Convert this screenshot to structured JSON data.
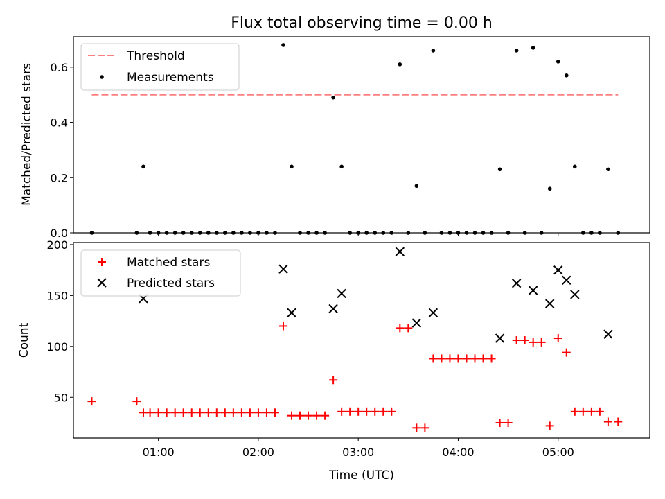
{
  "chart_data": [
    {
      "type": "scatter",
      "title": "Flux total observing time = 0.00 h",
      "xlabel": "",
      "ylabel": "Matched/Predicted stars",
      "ylim": [
        0,
        0.71
      ],
      "yticks": [
        "0.0",
        "0.2",
        "0.4",
        "0.6"
      ],
      "legend": {
        "placement": "top-left",
        "entries": [
          "Threshold",
          "Measurements"
        ]
      },
      "threshold": {
        "name": "Threshold",
        "value": 0.5,
        "x_start": "00:20",
        "x_end": "05:36",
        "color": "#ff7f7f",
        "style": "dashed"
      },
      "series": [
        {
          "name": "Measurements",
          "color": "#000000",
          "marker": "dot",
          "x": [
            "00:20",
            "00:47",
            "00:51",
            "00:55",
            "01:00",
            "01:05",
            "01:10",
            "01:15",
            "01:20",
            "01:25",
            "01:30",
            "01:35",
            "01:40",
            "01:45",
            "01:50",
            "01:55",
            "02:00",
            "02:05",
            "02:10",
            "02:15",
            "02:20",
            "02:25",
            "02:30",
            "02:35",
            "02:40",
            "02:45",
            "02:50",
            "02:55",
            "03:00",
            "03:05",
            "03:10",
            "03:15",
            "03:20",
            "03:25",
            "03:30",
            "03:35",
            "03:40",
            "03:45",
            "03:50",
            "03:55",
            "04:00",
            "04:05",
            "04:10",
            "04:15",
            "04:20",
            "04:25",
            "04:30",
            "04:35",
            "04:40",
            "04:45",
            "04:50",
            "04:55",
            "05:00",
            "05:05",
            "05:10",
            "05:15",
            "05:20",
            "05:25",
            "05:30",
            "05:36"
          ],
          "y": [
            0.0,
            0.0,
            0.24,
            0.0,
            0.0,
            0.0,
            0.0,
            0.0,
            0.0,
            0.0,
            0.0,
            0.0,
            0.0,
            0.0,
            0.0,
            0.0,
            0.0,
            0.0,
            0.0,
            0.68,
            0.24,
            0.0,
            0.0,
            0.0,
            0.0,
            0.49,
            0.24,
            0.0,
            0.0,
            0.0,
            0.0,
            0.0,
            0.0,
            0.61,
            0.0,
            0.17,
            0.0,
            0.66,
            0.0,
            0.0,
            0.0,
            0.0,
            0.0,
            0.0,
            0.0,
            0.23,
            0.0,
            0.66,
            0.0,
            0.67,
            0.0,
            0.16,
            0.62,
            0.57,
            0.24,
            0.0,
            0.0,
            0.0,
            0.23,
            0.0
          ]
        }
      ]
    },
    {
      "type": "scatter",
      "title": "",
      "xlabel": "Time (UTC)",
      "ylabel": "Count",
      "ylim": [
        10,
        202
      ],
      "yticks": [
        "50",
        "100",
        "150",
        "200"
      ],
      "xticks": [
        "01:00",
        "02:00",
        "03:00",
        "04:00",
        "05:00"
      ],
      "xlim": [
        "00:09",
        "05:55"
      ],
      "legend": {
        "placement": "top-left",
        "entries": [
          "Matched stars",
          "Predicted stars"
        ]
      },
      "series": [
        {
          "name": "Matched stars",
          "color": "#ff0000",
          "marker": "plus",
          "x": [
            "00:20",
            "00:47",
            "00:51",
            "00:55",
            "01:00",
            "01:05",
            "01:10",
            "01:15",
            "01:20",
            "01:25",
            "01:30",
            "01:35",
            "01:40",
            "01:45",
            "01:50",
            "01:55",
            "02:00",
            "02:05",
            "02:10",
            "02:15",
            "02:20",
            "02:25",
            "02:30",
            "02:35",
            "02:40",
            "02:45",
            "02:50",
            "02:55",
            "03:00",
            "03:05",
            "03:10",
            "03:15",
            "03:20",
            "03:25",
            "03:30",
            "03:35",
            "03:40",
            "03:45",
            "03:50",
            "03:55",
            "04:00",
            "04:05",
            "04:10",
            "04:15",
            "04:20",
            "04:25",
            "04:30",
            "04:35",
            "04:40",
            "04:45",
            "04:50",
            "04:55",
            "05:00",
            "05:05",
            "05:10",
            "05:15",
            "05:20",
            "05:25",
            "05:30",
            "05:36"
          ],
          "y": [
            46,
            46,
            35,
            35,
            35,
            35,
            35,
            35,
            35,
            35,
            35,
            35,
            35,
            35,
            35,
            35,
            35,
            35,
            35,
            120,
            32,
            32,
            32,
            32,
            32,
            67,
            36,
            36,
            36,
            36,
            36,
            36,
            36,
            118,
            118,
            20,
            20,
            88,
            88,
            88,
            88,
            88,
            88,
            88,
            88,
            25,
            25,
            106,
            106,
            104,
            104,
            22,
            108,
            94,
            36,
            36,
            36,
            36,
            26,
            26
          ]
        },
        {
          "name": "Predicted stars",
          "color": "#000000",
          "marker": "x",
          "x": [
            "00:51",
            "02:15",
            "02:20",
            "02:45",
            "02:50",
            "03:25",
            "03:35",
            "03:45",
            "04:25",
            "04:35",
            "04:45",
            "04:55",
            "05:00",
            "05:05",
            "05:10",
            "05:30"
          ],
          "y": [
            147,
            176,
            133,
            137,
            152,
            193,
            123,
            133,
            108,
            162,
            155,
            142,
            175,
            165,
            151,
            112
          ]
        }
      ]
    }
  ]
}
